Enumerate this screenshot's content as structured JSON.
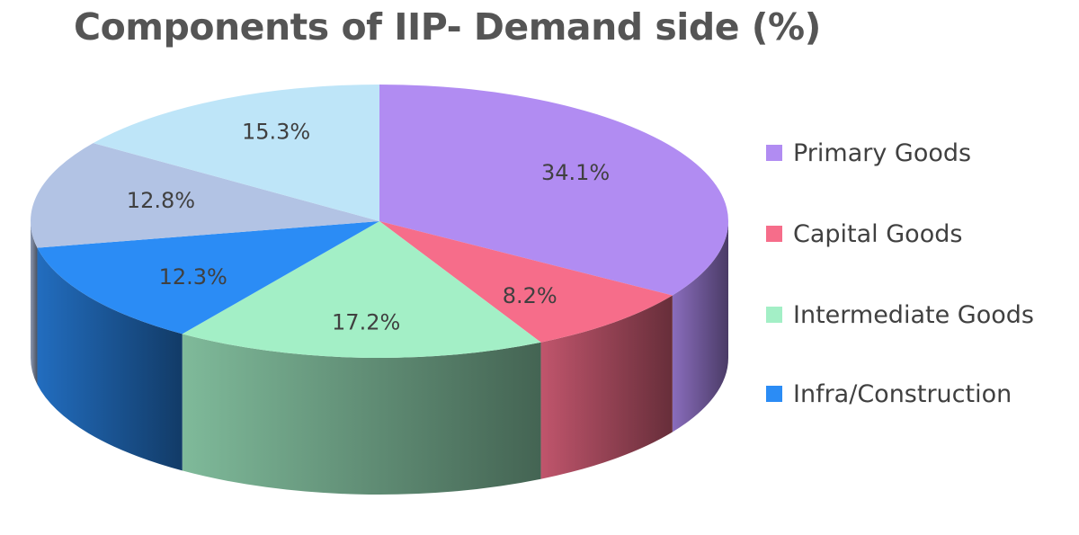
{
  "chart_data": {
    "type": "pie",
    "title": "Components of IIP- Demand side  (%)",
    "style": "3d",
    "slices": [
      {
        "label": "34.1%",
        "value": 34.1,
        "legend": "Primary Goods",
        "color": "#B18CF2"
      },
      {
        "label": "8.2%",
        "value": 8.2,
        "legend": "Capital Goods",
        "color": "#F66D8A"
      },
      {
        "label": "17.2%",
        "value": 17.2,
        "legend": "Intermediate Goods",
        "color": "#A3EFC6"
      },
      {
        "label": "12.3%",
        "value": 12.3,
        "legend": "Infra/Construction",
        "color": "#2B8CF5"
      },
      {
        "label": "12.8%",
        "value": 12.8,
        "legend": "",
        "color": "#B2C3E4"
      },
      {
        "label": "15.3%",
        "value": 15.3,
        "legend": "",
        "color": "#BEE5F8"
      }
    ],
    "legend_entries": [
      "Primary Goods",
      "Capital Goods",
      "Intermediate Goods",
      "Infra/Construction"
    ],
    "legend_position": "right"
  }
}
